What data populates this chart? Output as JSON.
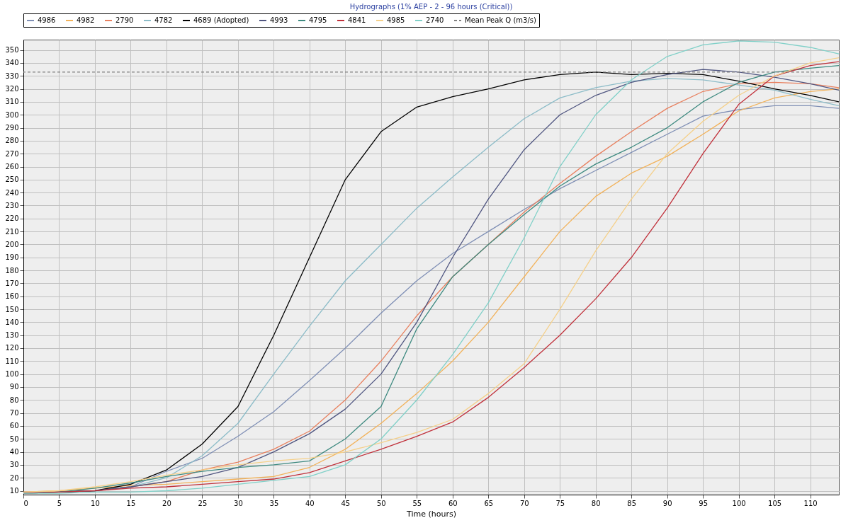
{
  "chart_data": {
    "type": "line",
    "title": "Hydrographs (1% AEP - 2 - 96 hours (Critical))",
    "xlabel": "Time (hours)",
    "x": [
      0,
      5,
      10,
      15,
      20,
      25,
      30,
      35,
      40,
      45,
      50,
      55,
      60,
      65,
      70,
      75,
      80,
      85,
      90,
      95,
      100,
      105,
      110,
      114
    ],
    "series": [
      {
        "name": "4986",
        "color": "#7f8fb5",
        "values": [
          8,
          9,
          10,
          13,
          25,
          35,
          52,
          71,
          95,
          120,
          147,
          172,
          193,
          210,
          227,
          243,
          257,
          271,
          285,
          299,
          304,
          307,
          307,
          305
        ]
      },
      {
        "name": "4982",
        "color": "#f2b25a",
        "values": [
          9,
          10,
          12,
          14,
          15,
          17,
          19,
          21,
          28,
          42,
          62,
          85,
          110,
          140,
          175,
          210,
          237,
          255,
          268,
          285,
          303,
          313,
          318,
          320
        ]
      },
      {
        "name": "2790",
        "color": "#e8805f",
        "values": [
          9,
          9,
          10,
          13,
          17,
          26,
          32,
          42,
          56,
          80,
          110,
          145,
          175,
          200,
          225,
          247,
          268,
          287,
          305,
          318,
          324,
          325,
          324,
          321
        ]
      },
      {
        "name": "4782",
        "color": "#8cbcc8",
        "values": [
          8,
          9,
          10,
          13,
          20,
          37,
          62,
          100,
          137,
          172,
          200,
          228,
          252,
          275,
          297,
          313,
          321,
          326,
          328,
          327,
          323,
          319,
          312,
          307
        ]
      },
      {
        "name": "4689 (Adopted)",
        "color": "#000000",
        "values": [
          8,
          9,
          10,
          15,
          26,
          46,
          75,
          130,
          190,
          250,
          287,
          306,
          314,
          320,
          327,
          331,
          333,
          331,
          332,
          331,
          326,
          320,
          315,
          310
        ]
      },
      {
        "name": "4993",
        "color": "#4f5580",
        "values": [
          8,
          9,
          10,
          13,
          17,
          21,
          28,
          40,
          54,
          73,
          100,
          140,
          190,
          235,
          273,
          300,
          315,
          325,
          331,
          335,
          333,
          329,
          324,
          319
        ]
      },
      {
        "name": "4795",
        "color": "#3e8a80",
        "values": [
          8,
          9,
          12,
          16,
          21,
          25,
          28,
          30,
          33,
          50,
          75,
          135,
          175,
          200,
          223,
          245,
          262,
          275,
          290,
          310,
          325,
          333,
          336,
          338
        ]
      },
      {
        "name": "4841",
        "color": "#c0303a",
        "values": [
          8,
          9,
          10,
          12,
          13,
          15,
          17,
          19,
          24,
          33,
          42,
          52,
          63,
          82,
          105,
          130,
          158,
          190,
          228,
          270,
          308,
          330,
          338,
          341
        ]
      },
      {
        "name": "4985",
        "color": "#f5d08a",
        "values": [
          9,
          10,
          13,
          17,
          22,
          26,
          30,
          33,
          35,
          40,
          47,
          55,
          65,
          85,
          108,
          150,
          195,
          235,
          270,
          295,
          315,
          330,
          340,
          344
        ]
      },
      {
        "name": "2740",
        "color": "#80d0c8",
        "values": [
          8,
          8,
          9,
          9,
          10,
          12,
          15,
          18,
          21,
          30,
          50,
          80,
          115,
          155,
          205,
          260,
          300,
          327,
          345,
          354,
          357,
          356,
          352,
          347
        ]
      }
    ],
    "ref_lines": [
      {
        "axis": "y",
        "value": 333,
        "label": "Mean Peak Q (m3/s)",
        "color": "#808080",
        "line_style": "dashed"
      }
    ],
    "xlim": [
      0,
      114
    ],
    "ylim": [
      7,
      358
    ],
    "xticks": [
      0,
      5,
      10,
      15,
      20,
      25,
      30,
      35,
      40,
      45,
      50,
      55,
      60,
      65,
      70,
      75,
      80,
      85,
      90,
      95,
      100,
      105,
      110
    ],
    "yticks": [
      10,
      20,
      30,
      40,
      50,
      60,
      70,
      80,
      90,
      100,
      110,
      120,
      130,
      140,
      150,
      160,
      170,
      180,
      190,
      200,
      210,
      220,
      230,
      240,
      250,
      260,
      270,
      280,
      290,
      300,
      310,
      320,
      330,
      340,
      350
    ],
    "grid": true,
    "legend": "top",
    "marker": "none",
    "line_style": "solid"
  }
}
